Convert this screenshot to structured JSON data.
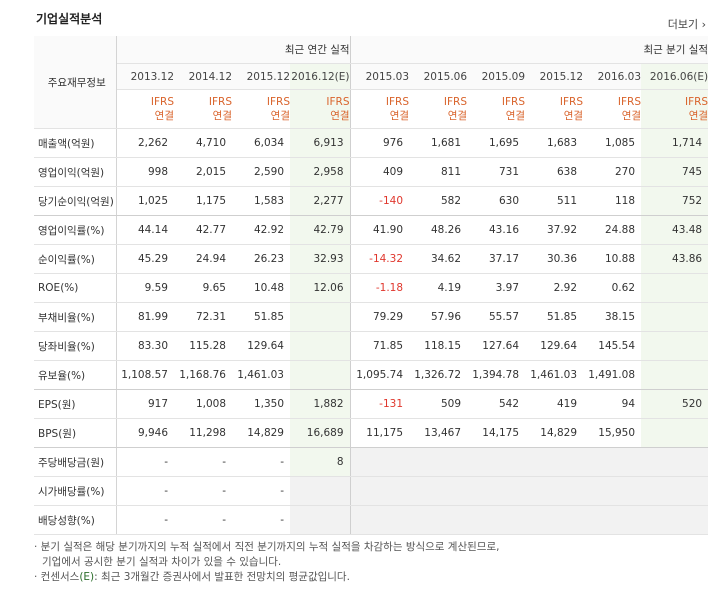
{
  "title": "기업실적분석",
  "more_label": "더보기 ›",
  "row_header_label": "주요재무정보",
  "groups": {
    "annual": "최근 연간 실적",
    "quarter": "최근 분기 실적"
  },
  "periods": [
    "2013.12",
    "2014.12",
    "2015.12",
    "2016.12(E)",
    "2015.03",
    "2015.06",
    "2015.09",
    "2015.12",
    "2016.03",
    "2016.06(E)"
  ],
  "ifrs": {
    "line1": "IFRS",
    "line2": "연결"
  },
  "rows": [
    {
      "label": "매출액(억원)",
      "values": [
        "2,262",
        "4,710",
        "6,034",
        "6,913",
        "976",
        "1,681",
        "1,695",
        "1,683",
        "1,085",
        "1,714"
      ]
    },
    {
      "label": "영업이익(억원)",
      "values": [
        "998",
        "2,015",
        "2,590",
        "2,958",
        "409",
        "811",
        "731",
        "638",
        "270",
        "745"
      ]
    },
    {
      "label": "당기순이익(억원)",
      "values": [
        "1,025",
        "1,175",
        "1,583",
        "2,277",
        "-140",
        "582",
        "630",
        "511",
        "118",
        "752"
      ]
    },
    {
      "label": "영업이익률(%)",
      "values": [
        "44.14",
        "42.77",
        "42.92",
        "42.79",
        "41.90",
        "48.26",
        "43.16",
        "37.92",
        "24.88",
        "43.48"
      ]
    },
    {
      "label": "순이익률(%)",
      "values": [
        "45.29",
        "24.94",
        "26.23",
        "32.93",
        "-14.32",
        "34.62",
        "37.17",
        "30.36",
        "10.88",
        "43.86"
      ]
    },
    {
      "label": "ROE(%)",
      "values": [
        "9.59",
        "9.65",
        "10.48",
        "12.06",
        "-1.18",
        "4.19",
        "3.97",
        "2.92",
        "0.62",
        ""
      ]
    },
    {
      "label": "부채비율(%)",
      "values": [
        "81.99",
        "72.31",
        "51.85",
        "",
        "79.29",
        "57.96",
        "55.57",
        "51.85",
        "38.15",
        ""
      ]
    },
    {
      "label": "당좌비율(%)",
      "values": [
        "83.30",
        "115.28",
        "129.64",
        "",
        "71.85",
        "118.15",
        "127.64",
        "129.64",
        "145.54",
        ""
      ]
    },
    {
      "label": "유보율(%)",
      "values": [
        "1,108.57",
        "1,168.76",
        "1,461.03",
        "",
        "1,095.74",
        "1,326.72",
        "1,394.78",
        "1,461.03",
        "1,491.08",
        ""
      ]
    },
    {
      "label": "EPS(원)",
      "values": [
        "917",
        "1,008",
        "1,350",
        "1,882",
        "-131",
        "509",
        "542",
        "419",
        "94",
        "520"
      ]
    },
    {
      "label": "BPS(원)",
      "values": [
        "9,946",
        "11,298",
        "14,829",
        "16,689",
        "11,175",
        "13,467",
        "14,175",
        "14,829",
        "15,950",
        ""
      ]
    },
    {
      "label": "주당배당금(원)",
      "values": [
        "-",
        "-",
        "-",
        "8",
        "",
        "",
        "",
        "",
        "",
        ""
      ]
    },
    {
      "label": "시가배당률(%)",
      "values": [
        "-",
        "-",
        "-",
        "",
        "",
        "",
        "",
        "",
        "",
        ""
      ]
    },
    {
      "label": "배당성향(%)",
      "values": [
        "-",
        "-",
        "-",
        "",
        "",
        "",
        "",
        "",
        "",
        ""
      ]
    }
  ],
  "notes": {
    "line1": "· 분기 실적은 해당 분기까지의 누적 실적에서 직전 분기까지의 누적 실적을 차감하는 방식으로 계산된므로,",
    "line2": "기업에서 공시한 분기 실적과 차이가 있을 수 있습니다.",
    "line3_prefix": "· 컨센서스",
    "line3_e": "(E)",
    "line3_rest": ": 최근 3개월간 증권사에서 발표한 전망치의 평균값입니다."
  }
}
